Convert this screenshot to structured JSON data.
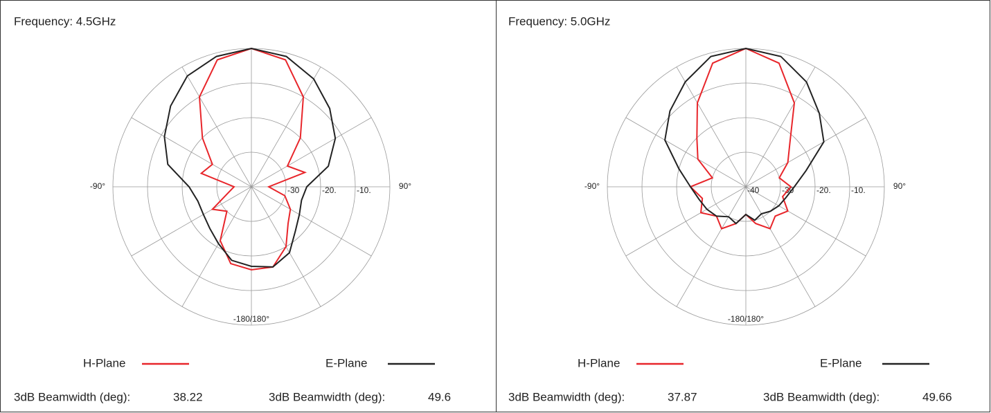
{
  "chart_data": [
    {
      "type": "polar",
      "title": "Frequency: 4.5GHz",
      "theta": [
        0,
        15,
        30,
        45,
        60,
        75,
        90,
        105,
        120,
        135,
        150,
        165,
        180,
        -165,
        -150,
        -135,
        -120,
        -105,
        -90,
        -75,
        -60,
        -45,
        -30,
        -15
      ],
      "rlim": [
        -40,
        0
      ],
      "rticks": [
        -30,
        {
          "value": -20,
          "label": "-20."
        },
        {
          "value": -10,
          "label": "-10."
        }
      ],
      "theta_grid_step": 30,
      "angle_labels": [
        {
          "theta": -90,
          "label": "-90°"
        },
        {
          "theta": 90,
          "label": "90°"
        },
        {
          "theta": 180,
          "label": "-180/180°"
        }
      ],
      "beamwidth_label": "3dB Beamwidth (deg):",
      "series": [
        {
          "name": "H-Plane",
          "color": "#e8252a",
          "beamwidth": 38.22,
          "values": [
            0,
            -2,
            -10,
            -20,
            -28,
            -24,
            -35,
            -30,
            -27,
            -25,
            -20,
            -16,
            -16,
            -17,
            -22,
            -30,
            -27,
            -33,
            -35,
            -25,
            -27,
            -20,
            -10,
            -2
          ]
        },
        {
          "name": "E-Plane",
          "color": "#222222",
          "beamwidth": 49.6,
          "values": [
            0,
            -1,
            -4,
            -8,
            -12,
            -17,
            -24,
            -25,
            -24,
            -22,
            -18,
            -16,
            -17,
            -18,
            -21,
            -23,
            -24,
            -24,
            -22,
            -15,
            -11,
            -7,
            -3,
            -1
          ]
        }
      ]
    },
    {
      "type": "polar",
      "title": "Frequency: 5.0GHz",
      "theta": [
        0,
        15,
        30,
        45,
        60,
        75,
        90,
        105,
        120,
        135,
        150,
        165,
        180,
        -165,
        -150,
        -135,
        -120,
        -105,
        -90,
        -75,
        -60,
        -45,
        -30,
        -15
      ],
      "rlim": [
        -40,
        0
      ],
      "rticks": [
        -40,
        -30,
        {
          "value": -20,
          "label": "-20."
        },
        {
          "value": -10,
          "label": "-10."
        }
      ],
      "theta_grid_step": 30,
      "angle_labels": [
        {
          "theta": -90,
          "label": "-90°"
        },
        {
          "theta": 90,
          "label": "90°"
        },
        {
          "theta": 180,
          "label": "-180/180°"
        }
      ],
      "beamwidth_label": "3dB Beamwidth (deg):",
      "series": [
        {
          "name": "H-Plane",
          "color": "#e8252a",
          "beamwidth": 37.87,
          "values": [
            0,
            -3,
            -12,
            -22,
            -26,
            -30,
            -27,
            -29,
            -26,
            -28,
            -26,
            -29,
            -32,
            -29,
            -26,
            -28,
            -25,
            -27,
            -24,
            -30,
            -24,
            -20,
            -12,
            -3
          ]
        },
        {
          "name": "E-Plane",
          "color": "#222222",
          "beamwidth": 49.66,
          "values": [
            0,
            -1,
            -5,
            -10,
            -14,
            -22,
            -26,
            -28,
            -29,
            -30,
            -31,
            -30,
            -32,
            -29,
            -30,
            -28,
            -27,
            -26,
            -24,
            -20,
            -13,
            -9,
            -5,
            -1
          ]
        }
      ]
    }
  ]
}
